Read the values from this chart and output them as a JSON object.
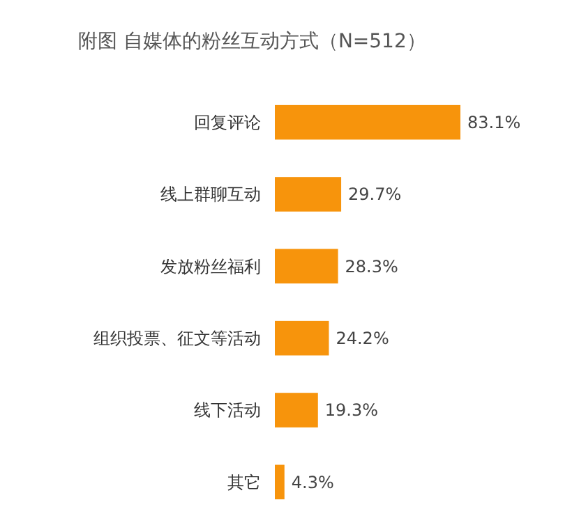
{
  "chart_data": {
    "type": "bar",
    "orientation": "horizontal",
    "title": "附图 自媒体的粉丝互动方式（N=512）",
    "categories": [
      "回复评论",
      "线上群聊互动",
      "发放粉丝福利",
      "组织投票、征文等活动",
      "线下活动",
      "其它"
    ],
    "values": [
      83.1,
      29.7,
      28.3,
      24.2,
      19.3,
      4.3
    ],
    "value_labels": [
      "83.1%",
      "29.7%",
      "28.3%",
      "24.2%",
      "19.3%",
      "4.3%"
    ],
    "color": "#f7940c"
  }
}
